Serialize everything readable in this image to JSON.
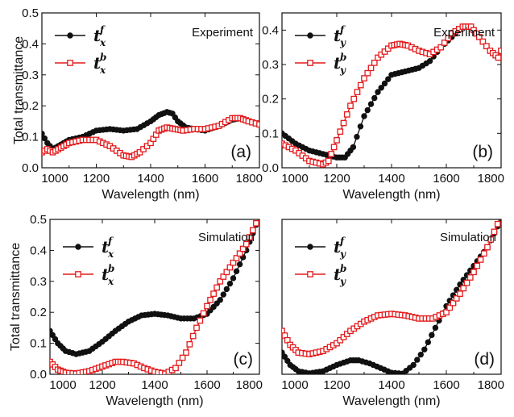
{
  "colors": {
    "front": "#111111",
    "back": "#e31a1c",
    "axis": "#111111"
  },
  "chart_data": [
    {
      "id": "a",
      "type": "line",
      "panel_label": "(a)",
      "corner_text": "Experiment",
      "xlabel": "Wavelength (nm)",
      "ylabel": "Total transmittance",
      "xlim": [
        1000,
        1800
      ],
      "ylim": [
        0,
        0.5
      ],
      "xticks": [
        1000,
        1200,
        1400,
        1600,
        1800
      ],
      "yticks": [
        0.0,
        0.1,
        0.2,
        0.3,
        0.4,
        0.5
      ],
      "ytick_labels": [
        "0.0",
        "0.1",
        "0.2",
        "0.3",
        "0.4",
        "0.5"
      ],
      "legend": [
        {
          "base": "t",
          "sup": "f",
          "sub": "x",
          "marker": "circle"
        },
        {
          "base": "t",
          "sup": "b",
          "sub": "x",
          "marker": "square"
        }
      ],
      "series": [
        {
          "marker": "circle",
          "color": "#111111",
          "x": [
            1000,
            1020,
            1040,
            1060,
            1080,
            1100,
            1150,
            1200,
            1250,
            1300,
            1350,
            1400,
            1430,
            1460,
            1480,
            1500,
            1530,
            1560,
            1600,
            1650,
            1700,
            1730,
            1760,
            1800
          ],
          "y": [
            0.11,
            0.08,
            0.06,
            0.07,
            0.08,
            0.09,
            0.1,
            0.12,
            0.125,
            0.12,
            0.125,
            0.15,
            0.17,
            0.18,
            0.175,
            0.15,
            0.13,
            0.125,
            0.12,
            0.135,
            0.155,
            0.16,
            0.15,
            0.14
          ]
        },
        {
          "marker": "square",
          "color": "#e31a1c",
          "x": [
            1000,
            1020,
            1040,
            1060,
            1080,
            1100,
            1150,
            1200,
            1250,
            1300,
            1330,
            1360,
            1400,
            1430,
            1460,
            1490,
            1520,
            1560,
            1600,
            1650,
            1700,
            1730,
            1760,
            1800
          ],
          "y": [
            0.05,
            0.06,
            0.05,
            0.06,
            0.07,
            0.08,
            0.09,
            0.09,
            0.07,
            0.04,
            0.035,
            0.05,
            0.08,
            0.12,
            0.13,
            0.125,
            0.12,
            0.125,
            0.125,
            0.135,
            0.16,
            0.16,
            0.15,
            0.14
          ]
        }
      ]
    },
    {
      "id": "b",
      "type": "line",
      "panel_label": "(b)",
      "corner_text": "Experiment",
      "xlabel": "Wavelength (nm)",
      "ylabel": "",
      "xlim": [
        1000,
        1800
      ],
      "ylim": [
        0,
        0.45
      ],
      "xticks": [
        1000,
        1200,
        1400,
        1600,
        1800
      ],
      "yticks": [
        0.0,
        0.1,
        0.2,
        0.3,
        0.4
      ],
      "ytick_labels": [
        "0.0",
        "0.1",
        "0.2",
        "0.3",
        "0.4"
      ],
      "legend": [
        {
          "base": "t",
          "sup": "f",
          "sub": "y",
          "marker": "circle"
        },
        {
          "base": "t",
          "sup": "b",
          "sub": "y",
          "marker": "square"
        }
      ],
      "series": [
        {
          "marker": "circle",
          "color": "#111111",
          "x": [
            1000,
            1050,
            1100,
            1150,
            1200,
            1230,
            1260,
            1300,
            1350,
            1400,
            1450,
            1500,
            1540,
            1580,
            1620,
            1660,
            1690,
            1720,
            1760,
            1790,
            1800
          ],
          "y": [
            0.1,
            0.07,
            0.05,
            0.04,
            0.03,
            0.03,
            0.06,
            0.15,
            0.22,
            0.27,
            0.28,
            0.29,
            0.31,
            0.35,
            0.38,
            0.41,
            0.41,
            0.38,
            0.34,
            0.32,
            0.34
          ]
        },
        {
          "marker": "square",
          "color": "#e31a1c",
          "x": [
            1000,
            1050,
            1100,
            1150,
            1170,
            1200,
            1250,
            1300,
            1350,
            1400,
            1430,
            1460,
            1500,
            1540,
            1580,
            1620,
            1660,
            1690,
            1720,
            1760,
            1790,
            1800
          ],
          "y": [
            0.07,
            0.05,
            0.02,
            0.01,
            0.02,
            0.08,
            0.18,
            0.26,
            0.32,
            0.355,
            0.36,
            0.355,
            0.34,
            0.33,
            0.35,
            0.39,
            0.41,
            0.41,
            0.38,
            0.34,
            0.32,
            0.34
          ]
        }
      ]
    },
    {
      "id": "c",
      "type": "line",
      "panel_label": "(c)",
      "corner_text": "Simulation",
      "xlabel": "Wavelength (nm)",
      "ylabel": "Total transmittance",
      "xlim": [
        1000,
        1800
      ],
      "ylim": [
        0,
        0.5
      ],
      "xticks": [
        1000,
        1200,
        1400,
        1600,
        1800
      ],
      "yticks": [
        0.0,
        0.1,
        0.2,
        0.3,
        0.4,
        0.5
      ],
      "ytick_labels": [
        "0.0",
        "0.1",
        "0.2",
        "0.3",
        "0.4",
        "0.5"
      ],
      "legend": [
        {
          "base": "t",
          "sup": "f",
          "sub": "x",
          "marker": "circle"
        },
        {
          "base": "t",
          "sup": "b",
          "sub": "x",
          "marker": "square"
        }
      ],
      "series": [
        {
          "marker": "circle",
          "color": "#111111",
          "x": [
            1000,
            1030,
            1060,
            1100,
            1150,
            1200,
            1250,
            1300,
            1350,
            1400,
            1450,
            1500,
            1550,
            1600,
            1650,
            1700,
            1750,
            1800
          ],
          "y": [
            0.14,
            0.1,
            0.075,
            0.065,
            0.075,
            0.105,
            0.14,
            0.17,
            0.19,
            0.195,
            0.19,
            0.18,
            0.18,
            0.195,
            0.24,
            0.31,
            0.4,
            0.51
          ]
        },
        {
          "marker": "square",
          "color": "#e31a1c",
          "x": [
            1000,
            1030,
            1060,
            1100,
            1150,
            1200,
            1250,
            1280,
            1320,
            1360,
            1400,
            1440,
            1480,
            1520,
            1560,
            1600,
            1650,
            1700,
            1750,
            1800
          ],
          "y": [
            0.04,
            0.015,
            0.005,
            0.002,
            0.01,
            0.025,
            0.04,
            0.04,
            0.035,
            0.02,
            0.008,
            0.002,
            0.02,
            0.07,
            0.15,
            0.22,
            0.3,
            0.36,
            0.42,
            0.51
          ]
        }
      ]
    },
    {
      "id": "d",
      "type": "line",
      "panel_label": "(d)",
      "corner_text": "Simulation",
      "xlabel": "Wavelength (nm)",
      "ylabel": "",
      "xlim": [
        1000,
        1800
      ],
      "ylim": [
        0,
        0.5
      ],
      "xticks": [
        1000,
        1200,
        1400,
        1600,
        1800
      ],
      "yticks": [],
      "ytick_labels": [],
      "legend": [
        {
          "base": "t",
          "sup": "f",
          "sub": "y",
          "marker": "circle"
        },
        {
          "base": "t",
          "sup": "b",
          "sub": "y",
          "marker": "square"
        }
      ],
      "series": [
        {
          "marker": "circle",
          "color": "#111111",
          "x": [
            1000,
            1030,
            1060,
            1100,
            1150,
            1200,
            1250,
            1280,
            1320,
            1360,
            1400,
            1440,
            1480,
            1520,
            1560,
            1600,
            1650,
            1700,
            1750,
            1800
          ],
          "y": [
            0.07,
            0.03,
            0.01,
            0.003,
            0.01,
            0.03,
            0.045,
            0.045,
            0.035,
            0.02,
            0.005,
            0.002,
            0.03,
            0.08,
            0.15,
            0.22,
            0.29,
            0.35,
            0.41,
            0.5
          ]
        },
        {
          "marker": "square",
          "color": "#e31a1c",
          "x": [
            1000,
            1030,
            1060,
            1100,
            1150,
            1200,
            1250,
            1300,
            1350,
            1400,
            1450,
            1500,
            1550,
            1600,
            1650,
            1700,
            1750,
            1800
          ],
          "y": [
            0.14,
            0.095,
            0.07,
            0.065,
            0.075,
            0.1,
            0.14,
            0.17,
            0.19,
            0.195,
            0.19,
            0.18,
            0.18,
            0.2,
            0.26,
            0.33,
            0.41,
            0.51
          ]
        }
      ]
    }
  ]
}
